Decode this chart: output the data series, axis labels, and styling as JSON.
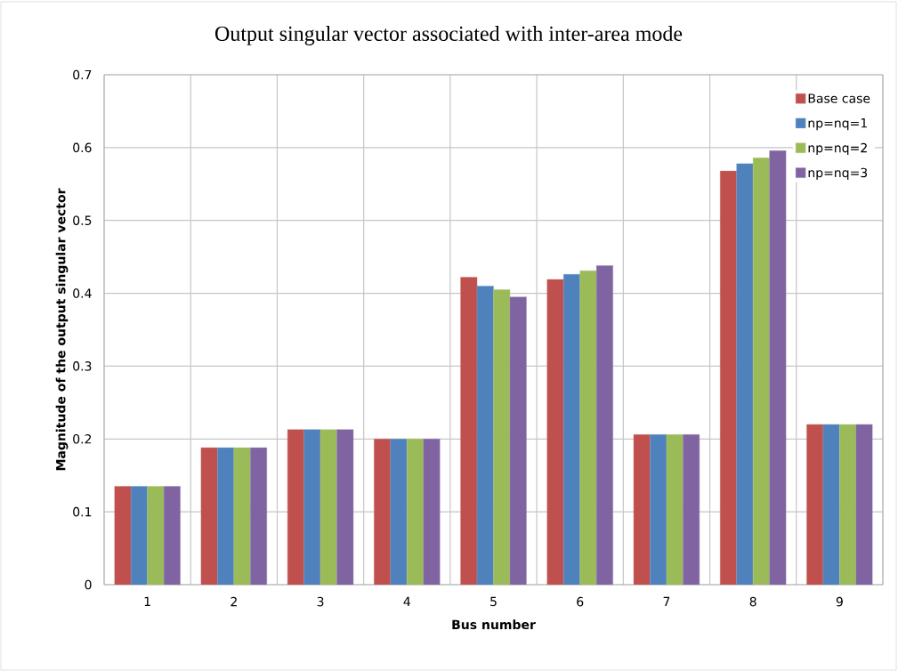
{
  "chart_data": {
    "type": "bar",
    "title": "Output singular vector associated with inter-area mode",
    "xlabel": "Bus number",
    "ylabel": "Magnitude of the output singular vector",
    "categories": [
      "1",
      "2",
      "3",
      "4",
      "5",
      "6",
      "7",
      "8",
      "9"
    ],
    "series": [
      {
        "name": "Base case",
        "color": "#c0504d",
        "values": [
          0.135,
          0.188,
          0.213,
          0.2,
          0.422,
          0.419,
          0.206,
          0.568,
          0.22
        ]
      },
      {
        "name": "np=nq=1",
        "color": "#4f81bd",
        "values": [
          0.135,
          0.188,
          0.213,
          0.2,
          0.41,
          0.426,
          0.206,
          0.578,
          0.22
        ]
      },
      {
        "name": "np=nq=2",
        "color": "#9bbb59",
        "values": [
          0.135,
          0.188,
          0.213,
          0.2,
          0.405,
          0.431,
          0.206,
          0.586,
          0.22
        ]
      },
      {
        "name": "np=nq=3",
        "color": "#8064a2",
        "values": [
          0.135,
          0.188,
          0.213,
          0.2,
          0.395,
          0.438,
          0.206,
          0.596,
          0.22
        ]
      }
    ],
    "ylim": [
      0,
      0.7
    ],
    "yticks": [
      0,
      0.1,
      0.2,
      0.3,
      0.4,
      0.5,
      0.6,
      0.7
    ],
    "grid": true,
    "legend": "top right"
  }
}
